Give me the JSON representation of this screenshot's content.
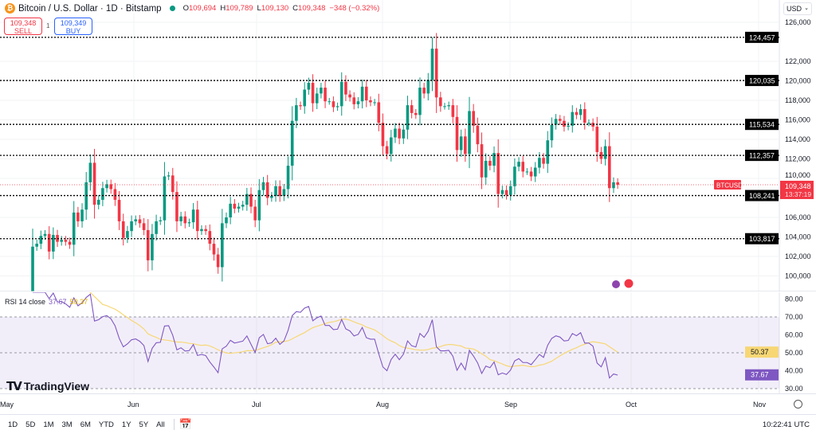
{
  "header": {
    "title": "Bitcoin / U.S. Dollar · 1D · Bitstamp",
    "open_label": "O",
    "open": "109,694",
    "high_label": "H",
    "high": "109,789",
    "low_label": "L",
    "low": "109,130",
    "close_label": "C",
    "close": "109,348",
    "change": "−348 (−0.32%)"
  },
  "trade": {
    "sell_price": "109,348",
    "sell_label": "SELL",
    "spread": "1",
    "buy_price": "109,349",
    "buy_label": "BUY"
  },
  "currency": "USD",
  "price_axis": {
    "ticks": [
      "126,000",
      "122,000",
      "120,000",
      "118,000",
      "116,000",
      "114,000",
      "112,000",
      "110,000",
      "106,000",
      "104,000",
      "102,000",
      "100,000"
    ]
  },
  "levels": [
    "124,457",
    "120,035",
    "115,534",
    "112,357",
    "108,241",
    "103,817"
  ],
  "current": {
    "symbol": "BTCUSD",
    "price": "109,348",
    "countdown": "13:37:19"
  },
  "rsi": {
    "label": "RSI 14 close",
    "value": "37.67",
    "ma": "50.37",
    "ticks": [
      "80.00",
      "70.00",
      "60.00",
      "50.00",
      "40.00",
      "30.00"
    ]
  },
  "time_axis": [
    "May",
    "Jun",
    "Jul",
    "Aug",
    "Sep",
    "Oct",
    "Nov"
  ],
  "bottom": {
    "ranges": [
      "1D",
      "5D",
      "1M",
      "3M",
      "6M",
      "YTD",
      "1Y",
      "5Y",
      "All"
    ],
    "clock": "10:22:41 UTC"
  },
  "logo": "TradingView",
  "colors": {
    "up": "#089981",
    "down": "#f23645",
    "rsi": "#7e57c2",
    "rsi_ma": "#f7d774",
    "rsi_band": "#7e57c2"
  },
  "chart_data": {
    "type": "candlestick",
    "start_date": "2025-05-08",
    "first_open": 97.0,
    "unit": "USD thousands",
    "closes": [
      103.0,
      103.3,
      104.1,
      104.3,
      102.5,
      104.2,
      103.5,
      103.7,
      103.5,
      103.2,
      106.5,
      105.6,
      106.8,
      109.6,
      111.6,
      107.3,
      107.8,
      109.0,
      109.4,
      108.9,
      107.8,
      105.6,
      103.9,
      104.6,
      105.6,
      105.8,
      105.4,
      104.7,
      101.6,
      104.3,
      105.6,
      105.7,
      110.2,
      110.3,
      108.6,
      105.6,
      106.1,
      105.4,
      105.5,
      106.8,
      104.6,
      104.8,
      104.6,
      103.3,
      102.2,
      100.9,
      105.4,
      106.0,
      107.4,
      106.9,
      107.1,
      107.3,
      108.4,
      107.1,
      105.7,
      108.8,
      109.6,
      108.0,
      108.2,
      109.2,
      108.2,
      108.9,
      111.3,
      115.9,
      117.5,
      117.4,
      119.1,
      119.8,
      117.7,
      118.7,
      119.3,
      117.9,
      117.9,
      117.3,
      117.4,
      119.9,
      118.6,
      118.3,
      117.6,
      117.9,
      119.4,
      118.0,
      117.8,
      117.8,
      115.7,
      113.3,
      112.5,
      114.2,
      115.1,
      114.1,
      115.0,
      117.5,
      116.7,
      116.5,
      119.3,
      118.7,
      120.1,
      123.3,
      118.3,
      117.4,
      117.4,
      117.5,
      116.3,
      112.9,
      114.3,
      112.5,
      116.9,
      115.4,
      113.5,
      110.1,
      111.8,
      111.3,
      112.6,
      108.4,
      108.8,
      108.3,
      109.2,
      111.2,
      111.7,
      110.7,
      110.7,
      110.2,
      111.1,
      112.1,
      111.5,
      113.9,
      115.5,
      116.1,
      115.9,
      115.3,
      115.4,
      116.8,
      116.5,
      117.1,
      115.7,
      115.7,
      115.3,
      112.7,
      112.0,
      113.3,
      109.0,
      109.6,
      109.348
    ],
    "ylim": [
      99000,
      127000
    ],
    "rsi_ylim": [
      28,
      82
    ]
  }
}
